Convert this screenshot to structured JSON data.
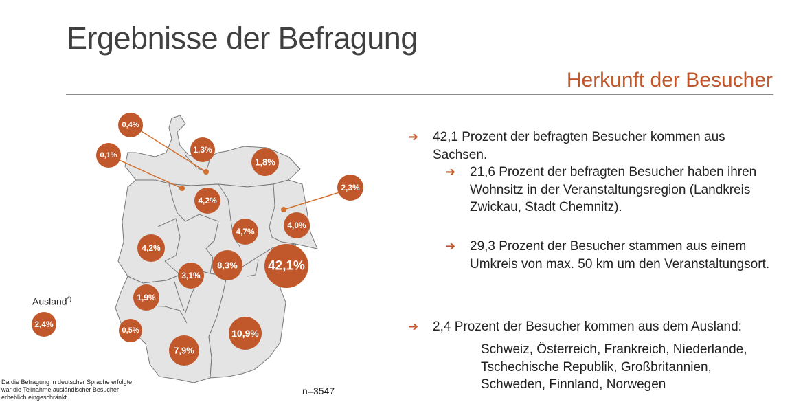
{
  "header": {
    "title": "Ergebnisse der Befragung",
    "subtitle": "Herkunft der Besucher"
  },
  "colors": {
    "accent": "#C0582B",
    "map_fill": "#E4E4E4",
    "map_border": "#777777"
  },
  "map": {
    "bubbles": [
      {
        "id": "schleswig-holstein",
        "label": "1,3%"
      },
      {
        "id": "mecklenburg-vorpommern",
        "label": "1,8%"
      },
      {
        "id": "hamburg",
        "label": "0,4%"
      },
      {
        "id": "bremen",
        "label": "0,1%"
      },
      {
        "id": "niedersachsen",
        "label": "4,2%"
      },
      {
        "id": "berlin",
        "label": "2,3%"
      },
      {
        "id": "brandenburg",
        "label": "4,0%"
      },
      {
        "id": "sachsen-anhalt",
        "label": "4,7%"
      },
      {
        "id": "nordrhein-westfalen",
        "label": "4,2%"
      },
      {
        "id": "hessen",
        "label": "3,1%"
      },
      {
        "id": "thueringen",
        "label": "8,3%"
      },
      {
        "id": "sachsen",
        "label": "42,1%"
      },
      {
        "id": "rheinland-pfalz",
        "label": "1,9%"
      },
      {
        "id": "saarland",
        "label": "0,5%"
      },
      {
        "id": "bayern",
        "label": "10,9%"
      },
      {
        "id": "baden-wuerttemberg",
        "label": "7,9%"
      },
      {
        "id": "ausland",
        "label": "2,4%"
      }
    ],
    "ausland_label": "Ausland",
    "ausland_marker": "*)",
    "footnote": "Da die Befragung in deutscher Sprache erfolgte, war die Teilnahme ausländischer Besucher erheblich eingeschränkt.",
    "sample_size": "n=3547"
  },
  "bullets": {
    "b1": "42,1 Prozent der befragten Besucher kommen aus Sachsen.",
    "b1a": "21,6 Prozent der befragten Besucher haben ihren Wohnsitz in der Veranstaltungsregion (Landkreis Zwickau, Stadt Chemnitz).",
    "b1b": "29,3 Prozent der Besucher stammen aus einem Umkreis von max. 50 km um den Veranstaltungsort.",
    "b2": "2,4 Prozent der Besucher kommen aus dem Ausland:",
    "b2_countries": "Schweiz, Österreich, Frankreich, Niederlande, Tschechische Republik, Großbritannien, Schweden, Finnland, Norwegen"
  }
}
